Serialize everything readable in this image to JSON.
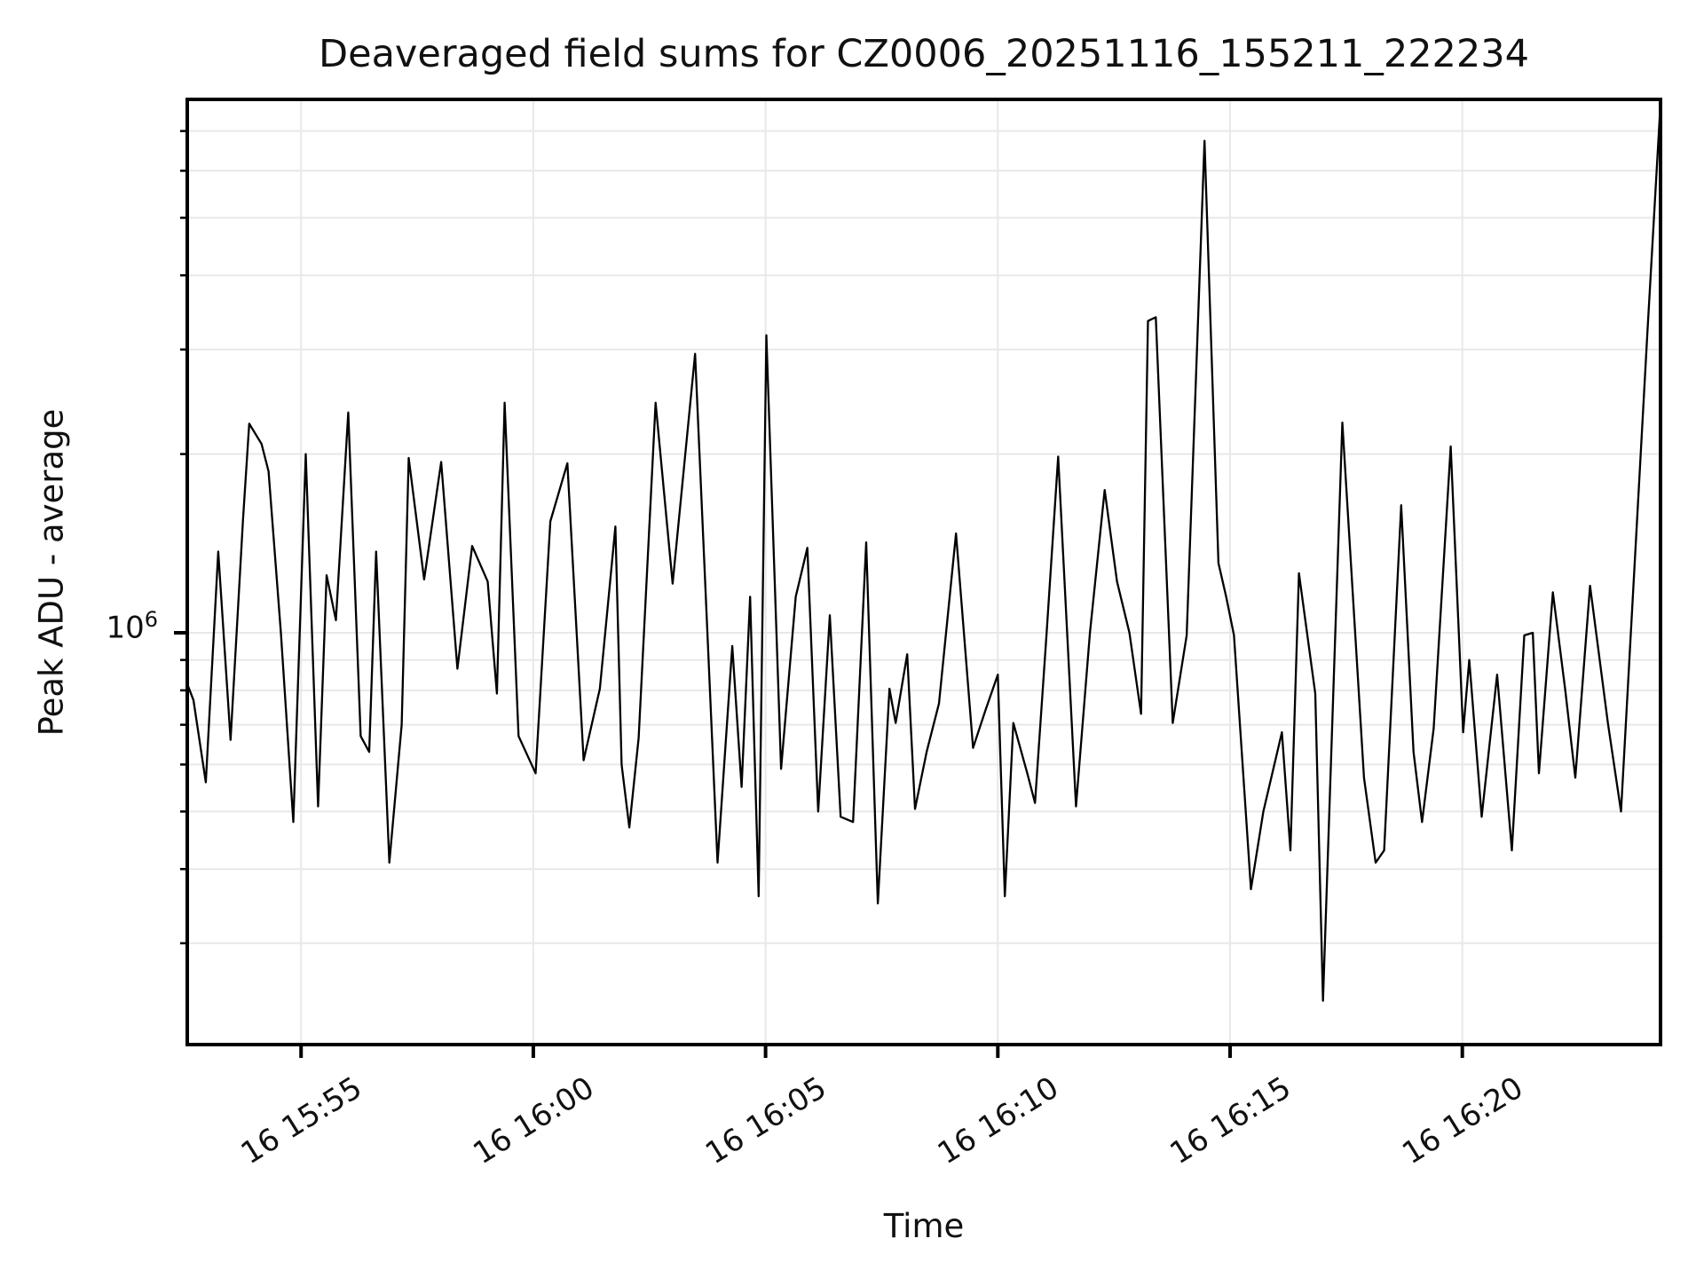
{
  "figure": {
    "title": "Deaveraged field sums for CZ0006_20251116_155211_222234",
    "x_axis_title": "Time",
    "y_axis_title": "Peak ADU - average"
  },
  "chart_data": {
    "type": "line",
    "title": "Deaveraged field sums for CZ0006_20251116_155211_222234",
    "xlabel": "Time",
    "ylabel": "Peak ADU - average",
    "yscale": "log",
    "grid": true,
    "legend": "none",
    "line_color": "#000000",
    "grid_color": "#e8e8e8",
    "spine_color": "#000000",
    "text_color": "#111111",
    "xlim": [
      "15:52:33",
      "16:24:16"
    ],
    "ylim": [
      202000,
      7910000
    ],
    "y_major_tick": {
      "base": "10",
      "exp": "6",
      "value": 1000000
    },
    "y_minor_tick_values": [
      300000,
      400000,
      500000,
      600000,
      700000,
      800000,
      900000,
      2000000,
      3000000,
      4000000,
      5000000,
      6000000,
      7000000
    ],
    "x_ticks": [
      {
        "label": "16 15:55",
        "t": "15:55:00"
      },
      {
        "label": "16 16:00",
        "t": "16:00:00"
      },
      {
        "label": "16 16:05",
        "t": "16:05:00"
      },
      {
        "label": "16 16:10",
        "t": "16:10:00"
      },
      {
        "label": "16 16:15",
        "t": "16:15:00"
      },
      {
        "label": "16 16:20",
        "t": "16:20:00"
      }
    ],
    "series_name": "Peak ADU - average",
    "points": [
      [
        "15:52:33",
        820000
      ],
      [
        "15:52:41",
        770000
      ],
      [
        "15:52:57",
        560000
      ],
      [
        "15:53:13",
        1370000
      ],
      [
        "15:53:29",
        660000
      ],
      [
        "15:53:45",
        1550000
      ],
      [
        "15:53:53",
        2250000
      ],
      [
        "15:54:09",
        2080000
      ],
      [
        "15:54:18",
        1870000
      ],
      [
        "15:54:34",
        1000000
      ],
      [
        "15:54:50",
        480000
      ],
      [
        "15:55:06",
        2000000
      ],
      [
        "15:55:22",
        510000
      ],
      [
        "15:55:33",
        1250000
      ],
      [
        "15:55:45",
        1050000
      ],
      [
        "15:56:01",
        2350000
      ],
      [
        "15:56:17",
        670000
      ],
      [
        "15:56:28",
        630000
      ],
      [
        "15:56:37",
        1370000
      ],
      [
        "15:56:54",
        410000
      ],
      [
        "15:57:10",
        700000
      ],
      [
        "15:57:19",
        1970000
      ],
      [
        "15:57:39",
        1230000
      ],
      [
        "15:58:01",
        1940000
      ],
      [
        "15:58:22",
        870000
      ],
      [
        "15:58:41",
        1400000
      ],
      [
        "15:59:01",
        1220000
      ],
      [
        "15:59:13",
        790000
      ],
      [
        "15:59:23",
        2440000
      ],
      [
        "15:59:41",
        670000
      ],
      [
        "16:00:03",
        580000
      ],
      [
        "16:00:22",
        1540000
      ],
      [
        "16:00:44",
        1930000
      ],
      [
        "16:01:05",
        610000
      ],
      [
        "16:01:26",
        805000
      ],
      [
        "16:01:46",
        1510000
      ],
      [
        "16:01:54",
        600000
      ],
      [
        "16:02:04",
        470000
      ],
      [
        "16:02:16",
        665000
      ],
      [
        "16:02:38",
        2440000
      ],
      [
        "16:03:00",
        1210000
      ],
      [
        "16:03:29",
        2950000
      ],
      [
        "16:03:58",
        410000
      ],
      [
        "16:04:17",
        950000
      ],
      [
        "16:04:29",
        550000
      ],
      [
        "16:04:40",
        1150000
      ],
      [
        "16:04:51",
        360000
      ],
      [
        "16:05:01",
        3170000
      ],
      [
        "16:05:20",
        590000
      ],
      [
        "16:05:39",
        1150000
      ],
      [
        "16:05:54",
        1390000
      ],
      [
        "16:06:08",
        500000
      ],
      [
        "16:06:23",
        1070000
      ],
      [
        "16:06:37",
        490000
      ],
      [
        "16:06:53",
        480000
      ],
      [
        "16:07:10",
        1420000
      ],
      [
        "16:07:25",
        350000
      ],
      [
        "16:07:40",
        805000
      ],
      [
        "16:07:48",
        705000
      ],
      [
        "16:08:03",
        920000
      ],
      [
        "16:08:13",
        505000
      ],
      [
        "16:08:28",
        630000
      ],
      [
        "16:08:44",
        760000
      ],
      [
        "16:09:06",
        1470000
      ],
      [
        "16:09:28",
        640000
      ],
      [
        "16:09:44",
        740000
      ],
      [
        "16:10:00",
        850000
      ],
      [
        "16:10:09",
        360000
      ],
      [
        "16:10:20",
        705000
      ],
      [
        "16:10:38",
        580000
      ],
      [
        "16:10:48",
        517000
      ],
      [
        "16:11:03",
        1000000
      ],
      [
        "16:11:18",
        1980000
      ],
      [
        "16:11:41",
        510000
      ],
      [
        "16:11:59",
        1000000
      ],
      [
        "16:12:18",
        1740000
      ],
      [
        "16:12:34",
        1220000
      ],
      [
        "16:12:50",
        1000000
      ],
      [
        "16:13:05",
        730000
      ],
      [
        "16:13:14",
        3350000
      ],
      [
        "16:13:24",
        3400000
      ],
      [
        "16:13:46",
        705000
      ],
      [
        "16:14:04",
        990000
      ],
      [
        "16:14:27",
        6740000
      ],
      [
        "16:14:45",
        1310000
      ],
      [
        "16:14:55",
        1150000
      ],
      [
        "16:15:05",
        990000
      ],
      [
        "16:15:27",
        370000
      ],
      [
        "16:15:43",
        500000
      ],
      [
        "16:16:07",
        680000
      ],
      [
        "16:16:18",
        430000
      ],
      [
        "16:16:29",
        1260000
      ],
      [
        "16:16:50",
        790000
      ],
      [
        "16:17:00",
        240000
      ],
      [
        "16:17:25",
        2260000
      ],
      [
        "16:17:53",
        570000
      ],
      [
        "16:18:08",
        410000
      ],
      [
        "16:18:19",
        430000
      ],
      [
        "16:18:41",
        1640000
      ],
      [
        "16:18:57",
        630000
      ],
      [
        "16:19:08",
        480000
      ],
      [
        "16:19:23",
        690000
      ],
      [
        "16:19:45",
        2060000
      ],
      [
        "16:20:01",
        680000
      ],
      [
        "16:20:09",
        900000
      ],
      [
        "16:20:25",
        490000
      ],
      [
        "16:20:45",
        850000
      ],
      [
        "16:21:04",
        430000
      ],
      [
        "16:21:20",
        990000
      ],
      [
        "16:21:31",
        1000000
      ],
      [
        "16:21:39",
        580000
      ],
      [
        "16:21:57",
        1170000
      ],
      [
        "16:22:13",
        800000
      ],
      [
        "16:22:26",
        570000
      ],
      [
        "16:22:45",
        1200000
      ],
      [
        "16:23:08",
        705000
      ],
      [
        "16:23:25",
        500000
      ],
      [
        "16:23:41",
        1200000
      ],
      [
        "16:23:59",
        3200000
      ],
      [
        "16:24:16",
        7800000
      ]
    ]
  }
}
